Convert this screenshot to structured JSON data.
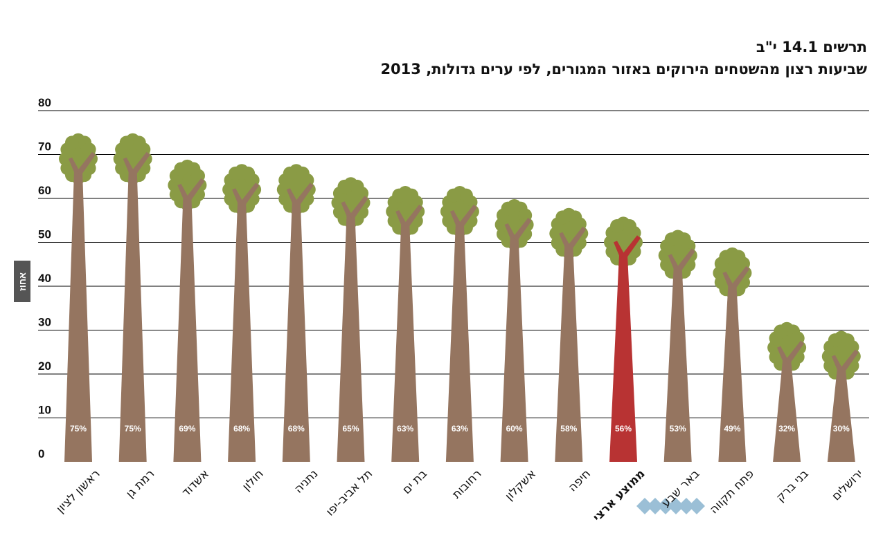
{
  "figure_label": "תרשים 14.1 י\"ב",
  "colors": {
    "trunk": "#957560",
    "crown": "#8a9b45",
    "highlight": "#b83333",
    "grid": "#000000",
    "decoration": "#9bbfd6"
  },
  "chart_data": {
    "type": "bar",
    "title": "שביעות רצון מהשטחים הירוקים באזור המגורים, לפי ערים גדולות, 2013",
    "ylabel": "אחוז",
    "xlabel": "",
    "ylim": [
      0,
      80
    ],
    "yticks": [
      0,
      10,
      20,
      30,
      40,
      50,
      60,
      70,
      80
    ],
    "grid": true,
    "categories": [
      "ראשון לציון",
      "רמת גן",
      "אשדוד",
      "חולון",
      "נתניה",
      "תל אביב-יפו",
      "בת ים",
      "רחובות",
      "אשקלון",
      "חיפה",
      "ממוצע ארצי",
      "באר שבע",
      "פתח תקווה",
      "בני ברק",
      "ירושלים"
    ],
    "values": [
      75,
      75,
      69,
      68,
      68,
      65,
      63,
      63,
      60,
      58,
      56,
      53,
      49,
      32,
      30
    ],
    "data_labels": [
      "75%",
      "75%",
      "69%",
      "68%",
      "68%",
      "65%",
      "63%",
      "63%",
      "60%",
      "58%",
      "56%",
      "53%",
      "49%",
      "32%",
      "30%"
    ],
    "highlight_category": "ממוצע ארצי"
  }
}
